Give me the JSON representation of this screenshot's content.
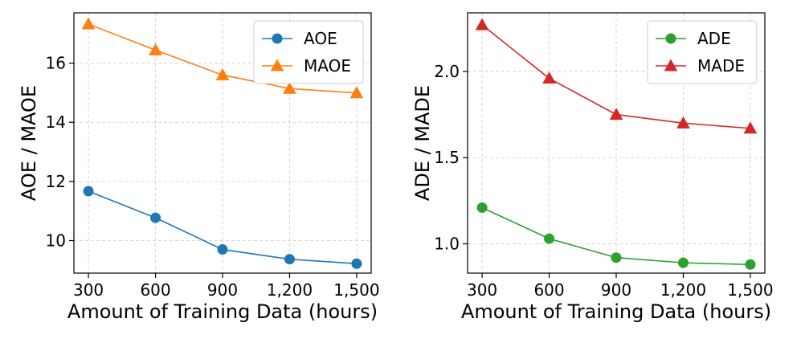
{
  "chart_data": [
    {
      "type": "line",
      "title": "",
      "xlabel": "Amount of Training Data (hours)",
      "ylabel": "AOE / MAOE",
      "x": [
        300,
        600,
        900,
        1200,
        1500
      ],
      "x_tick_labels": [
        "300",
        "600",
        "900",
        "1,200",
        "1,500"
      ],
      "xlim": [
        235,
        1565
      ],
      "ylim": [
        8.9,
        17.7
      ],
      "y_ticks": [
        10,
        12,
        14,
        16
      ],
      "y_tick_labels": [
        "10",
        "12",
        "14",
        "16"
      ],
      "grid": true,
      "legend_position": "top-right",
      "series": [
        {
          "name": "AOE",
          "values": [
            11.67,
            10.77,
            9.7,
            9.37,
            9.22
          ],
          "color": "#1f77b4",
          "marker": "circle"
        },
        {
          "name": "MAOE",
          "values": [
            17.32,
            16.44,
            15.6,
            15.14,
            14.99
          ],
          "color": "#ff7f0e",
          "marker": "triangle"
        }
      ]
    },
    {
      "type": "line",
      "title": "",
      "xlabel": "Amount of Training Data (hours)",
      "ylabel": "ADE / MADE",
      "x": [
        300,
        600,
        900,
        1200,
        1500
      ],
      "x_tick_labels": [
        "300",
        "600",
        "900",
        "1,200",
        "1,500"
      ],
      "xlim": [
        235,
        1565
      ],
      "ylim": [
        0.83,
        2.34
      ],
      "y_ticks": [
        1.0,
        1.5,
        2.0
      ],
      "y_tick_labels": [
        "1.0",
        "1.5",
        "2.0"
      ],
      "grid": true,
      "legend_position": "top-right",
      "series": [
        {
          "name": "ADE",
          "values": [
            1.21,
            1.03,
            0.92,
            0.89,
            0.88
          ],
          "color": "#2ca02c",
          "marker": "circle"
        },
        {
          "name": "MADE",
          "values": [
            2.27,
            1.96,
            1.75,
            1.7,
            1.67
          ],
          "color": "#d62728",
          "marker": "triangle"
        }
      ]
    }
  ]
}
